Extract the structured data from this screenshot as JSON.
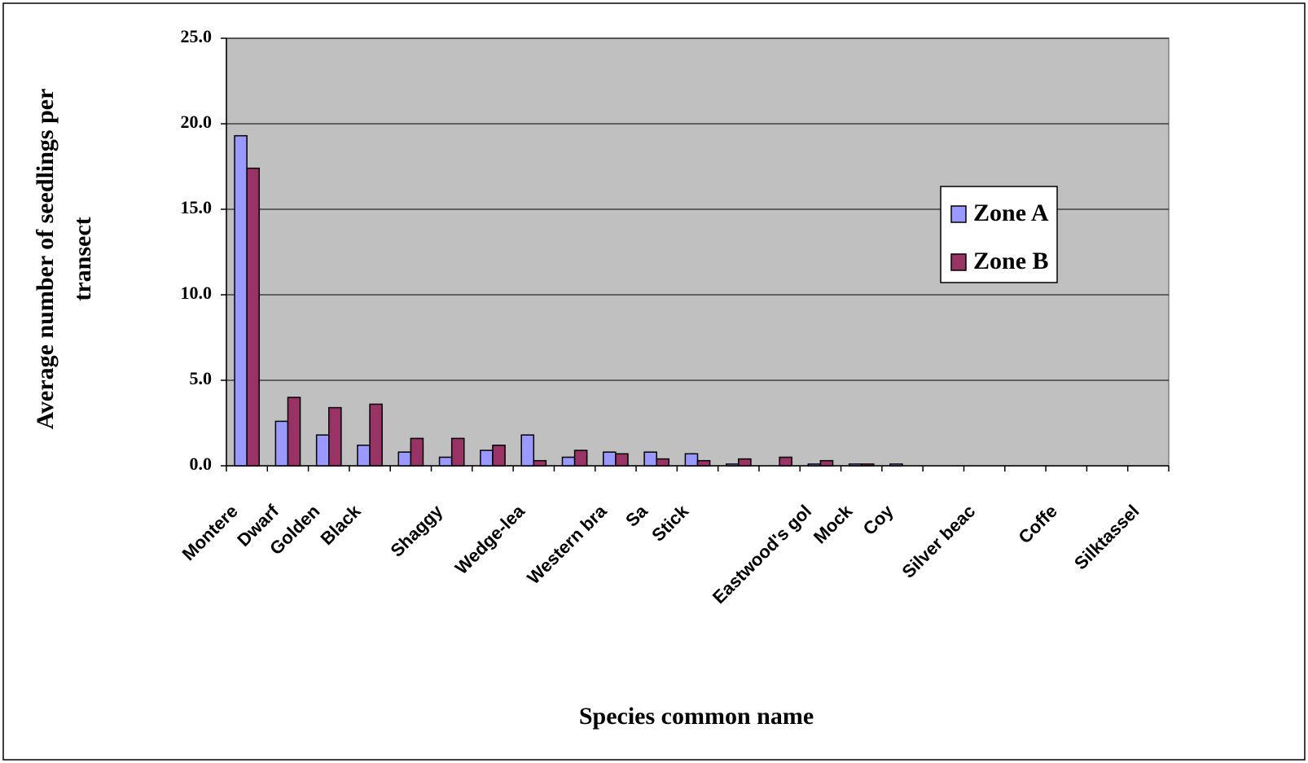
{
  "chart_data": {
    "type": "bar",
    "x_label": "Species common name",
    "y_label": "Average number of seedlings per transect",
    "categories": [
      "Montere",
      "Dwarf",
      "Golden",
      "Black",
      null,
      "Shaggy",
      null,
      "Wedge-lea",
      null,
      "Western bra",
      "Sa",
      "Stick",
      null,
      null,
      "Eastwood's gol",
      "Mock",
      "Coy",
      null,
      "Silver beac",
      null,
      "Coffe",
      null,
      "Silktassel"
    ],
    "series": [
      {
        "name": "Zone A",
        "color": "#9999ff",
        "values": [
          19.3,
          2.6,
          1.8,
          1.2,
          0.8,
          0.5,
          0.9,
          1.8,
          0.5,
          0.8,
          0.8,
          0.7,
          0.1,
          0,
          0.1,
          0.1,
          0.1,
          0,
          0,
          0,
          0,
          0,
          0
        ]
      },
      {
        "name": "Zone B",
        "color": "#993366",
        "values": [
          17.4,
          4.0,
          3.4,
          3.6,
          1.6,
          1.6,
          1.2,
          0.3,
          0.9,
          0.7,
          0.4,
          0.3,
          0.4,
          0.5,
          0.3,
          0.1,
          0,
          0,
          0,
          0,
          0,
          0,
          0
        ]
      }
    ],
    "ylim": [
      0,
      25
    ],
    "yticks": [
      {
        "value": 0,
        "label": "0.0"
      },
      {
        "value": 5,
        "label": "5.0"
      },
      {
        "value": 10,
        "label": "10.0"
      },
      {
        "value": 15,
        "label": "15.0"
      },
      {
        "value": 20,
        "label": "20.0"
      },
      {
        "value": 25,
        "label": "25.0"
      }
    ],
    "grid": true,
    "legend": "right",
    "background": "#c0c0c0"
  }
}
